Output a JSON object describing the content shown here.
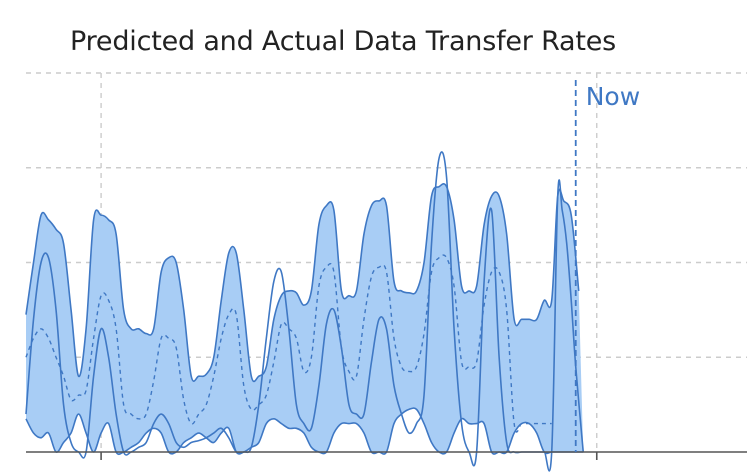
{
  "chart_data": {
    "type": "area",
    "title": "Predicted and Actual Data Transfer Rates",
    "xlabel": "",
    "ylabel": "",
    "xlim": [
      0,
      24
    ],
    "ylim": [
      0,
      4
    ],
    "grid": true,
    "now_marker": {
      "x": 18.3,
      "label": "Now"
    },
    "colors": {
      "band_fill": "#a8cdf5",
      "line": "#3f78c4",
      "now_line": "#3f78c4",
      "grid": "#cccccc",
      "axis": "#555555"
    },
    "x": [
      0,
      0.25,
      0.5,
      0.75,
      1,
      1.25,
      1.5,
      1.75,
      2,
      2.25,
      2.5,
      2.75,
      3,
      3.25,
      3.5,
      3.75,
      4,
      4.25,
      4.5,
      4.75,
      5,
      5.25,
      5.5,
      5.75,
      6,
      6.25,
      6.5,
      6.75,
      7,
      7.25,
      7.5,
      7.75,
      8,
      8.25,
      8.5,
      8.75,
      9,
      9.25,
      9.5,
      9.75,
      10,
      10.25,
      10.5,
      10.75,
      11,
      11.25,
      11.5,
      11.75,
      12,
      12.25,
      12.5,
      12.75,
      13,
      13.25,
      13.5,
      13.75,
      14,
      14.25,
      14.5,
      14.75,
      15,
      15.25,
      15.5,
      15.75,
      16,
      16.25,
      16.5,
      16.75,
      17,
      17.25,
      17.5,
      17.75,
      18,
      18.25,
      18.5,
      18.75,
      19
    ],
    "series": [
      {
        "role": "upper",
        "values": [
          1.45,
          2.0,
          2.5,
          2.45,
          2.35,
          2.2,
          1.5,
          0.8,
          1.3,
          2.45,
          2.5,
          2.45,
          2.3,
          1.5,
          1.3,
          1.3,
          1.25,
          1.3,
          1.9,
          2.05,
          2.0,
          1.5,
          0.8,
          0.8,
          0.82,
          1.0,
          1.6,
          2.1,
          2.1,
          1.5,
          0.8,
          0.8,
          0.9,
          1.4,
          1.65,
          1.7,
          1.68,
          1.55,
          1.7,
          2.4,
          2.6,
          2.55,
          1.7,
          1.65,
          1.7,
          2.3,
          2.6,
          2.65,
          2.6,
          1.8,
          1.7,
          1.68,
          1.7,
          2.0,
          2.7,
          2.8,
          2.8,
          2.45,
          1.75,
          1.7,
          1.75,
          2.4,
          2.7,
          2.7,
          2.3,
          1.4,
          1.4,
          1.4,
          1.4,
          1.6,
          1.6,
          1.6,
          1.6,
          1.6,
          1.6,
          1.6,
          1.6
        ],
        "name": ""
      },
      {
        "role": "lower",
        "values": [
          0.35,
          0.2,
          0.15,
          0.2,
          0.0,
          0.1,
          0.2,
          0.4,
          0.2,
          0.0,
          0.2,
          0.3,
          0.0,
          0.0,
          0.05,
          0.1,
          0.2,
          0.25,
          0.2,
          0.0,
          0.0,
          0.1,
          0.15,
          0.2,
          0.15,
          0.1,
          0.2,
          0.25,
          0.0,
          0.0,
          0.05,
          0.1,
          0.3,
          0.35,
          0.3,
          0.25,
          0.25,
          0.2,
          0.05,
          0.0,
          0.0,
          0.2,
          0.3,
          0.3,
          0.3,
          0.2,
          0.0,
          0.0,
          0.0,
          0.3,
          0.4,
          0.45,
          0.45,
          0.3,
          0.1,
          0.0,
          0.0,
          0.2,
          0.35,
          0.3,
          0.3,
          0.3,
          0.0,
          0.0,
          0.0,
          0.2,
          0.3,
          0.3,
          0.2,
          0.0,
          0.0,
          0.0,
          0.0,
          0.0,
          0.0,
          0.0,
          0.0
        ],
        "name": ""
      },
      {
        "role": "predicted",
        "values": [
          1.0,
          1.2,
          1.3,
          1.2,
          1.0,
          0.8,
          0.55,
          0.6,
          0.65,
          1.2,
          1.65,
          1.6,
          1.3,
          0.5,
          0.4,
          0.35,
          0.4,
          0.75,
          1.2,
          1.2,
          1.1,
          0.55,
          0.3,
          0.4,
          0.5,
          0.8,
          1.2,
          1.45,
          1.45,
          0.7,
          0.45,
          0.5,
          0.6,
          0.95,
          1.35,
          1.3,
          1.2,
          0.85,
          1.0,
          1.75,
          1.95,
          1.9,
          1.1,
          0.85,
          0.8,
          1.4,
          1.85,
          1.95,
          1.9,
          1.2,
          0.9,
          0.85,
          0.9,
          1.25,
          1.9,
          2.05,
          2.05,
          1.75,
          0.95,
          0.9,
          0.95,
          1.55,
          1.9,
          1.9,
          1.5,
          0.3,
          0.3,
          0.3,
          0.3,
          0.3,
          0.3,
          0.3,
          0.3,
          0.3,
          0.3,
          0.3,
          0.3
        ],
        "name": ""
      },
      {
        "role": "actual",
        "values": [
          0.4,
          1.4,
          2.0,
          2.05,
          1.5,
          0.5,
          0.1,
          0.0,
          0.0,
          0.8,
          1.3,
          1.0,
          0.4,
          0.0,
          0.0,
          0.05,
          0.1,
          0.3,
          0.4,
          0.3,
          0.1,
          0.05,
          0.1,
          0.12,
          0.15,
          0.2,
          0.25,
          0.15,
          0.0,
          0.0,
          0.05,
          0.5,
          1.2,
          1.8,
          1.9,
          1.3,
          0.5,
          0.3,
          0.25,
          0.7,
          1.35,
          1.5,
          1.1,
          0.5,
          0.4,
          0.4,
          0.95,
          1.4,
          1.3,
          0.7,
          0.4,
          0.2,
          0.3,
          0.6,
          2.2,
          3.1,
          2.9,
          1.3,
          0.3,
          0.0,
          0.0,
          1.8,
          2.55,
          1.0,
          0.1,
          0.0,
          0.0,
          0.0,
          0.0,
          0.0,
          0.0,
          0.0,
          0.0,
          0.0,
          0.0,
          0.0,
          0.0
        ],
        "name": ""
      }
    ],
    "segments_x_ranges": {
      "band_end": 17.7,
      "actual_tail": [
        [
          17.7,
          2.7
        ],
        [
          17.85,
          2.55
        ],
        [
          18.0,
          2.2
        ],
        [
          18.15,
          1.6
        ],
        [
          18.3,
          0.9
        ],
        [
          18.55,
          0.0
        ]
      ],
      "upper_tail": [
        [
          17.7,
          2.7
        ],
        [
          17.9,
          2.65
        ],
        [
          18.15,
          2.5
        ],
        [
          18.4,
          1.7
        ]
      ],
      "lower_tail": [
        [
          17.7,
          0.0
        ],
        [
          18.0,
          0.0
        ],
        [
          18.3,
          0.0
        ],
        [
          18.55,
          0.0
        ]
      ]
    }
  }
}
